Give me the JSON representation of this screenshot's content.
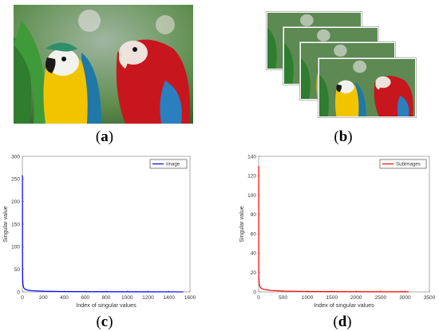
{
  "panels": {
    "a": {
      "label_open": "(",
      "label_letter": "a",
      "label_close": ")"
    },
    "b": {
      "label_open": "(",
      "label_letter": "b",
      "label_close": ")"
    },
    "c": {
      "label_open": "(",
      "label_letter": "c",
      "label_close": ")"
    },
    "d": {
      "label_open": "(",
      "label_letter": "d",
      "label_close": ")"
    }
  },
  "chart_data": [
    {
      "panel": "c",
      "type": "line",
      "title": "",
      "xlabel": "Index of singular values",
      "ylabel": "Singular value",
      "xlim": [
        0,
        1600
      ],
      "ylim": [
        0,
        300
      ],
      "xticks": [
        0,
        200,
        400,
        600,
        800,
        1000,
        1200,
        1400,
        1600
      ],
      "yticks": [
        0,
        50,
        100,
        150,
        200,
        250,
        300
      ],
      "grid": false,
      "legend_position": "top-right",
      "series": [
        {
          "name": "Image",
          "color": "#0000ff",
          "x": [
            1,
            2,
            3,
            5,
            8,
            12,
            20,
            35,
            60,
            100,
            200,
            400,
            800,
            1200,
            1536
          ],
          "y": [
            258,
            50,
            30,
            20,
            14,
            10,
            7,
            5,
            3.5,
            2.5,
            1.5,
            0.8,
            0.4,
            0.2,
            0.1
          ]
        }
      ]
    },
    {
      "panel": "d",
      "type": "line",
      "title": "",
      "xlabel": "Index of singular values",
      "ylabel": "Singular value",
      "xlim": [
        0,
        3500
      ],
      "ylim": [
        0,
        140
      ],
      "xticks": [
        0,
        500,
        1000,
        1500,
        2000,
        2500,
        3000,
        3500
      ],
      "yticks": [
        0,
        20,
        40,
        60,
        80,
        100,
        120,
        140
      ],
      "grid": false,
      "legend_position": "top-right",
      "series": [
        {
          "name": "Subimages",
          "color": "#ff0000",
          "x": [
            1,
            2,
            4,
            8,
            15,
            30,
            60,
            120,
            250,
            500,
            1000,
            2000,
            3072
          ],
          "y": [
            130,
            40,
            20,
            12,
            8,
            5,
            3.5,
            2.5,
            1.5,
            0.8,
            0.4,
            0.2,
            0.1
          ]
        }
      ]
    }
  ]
}
